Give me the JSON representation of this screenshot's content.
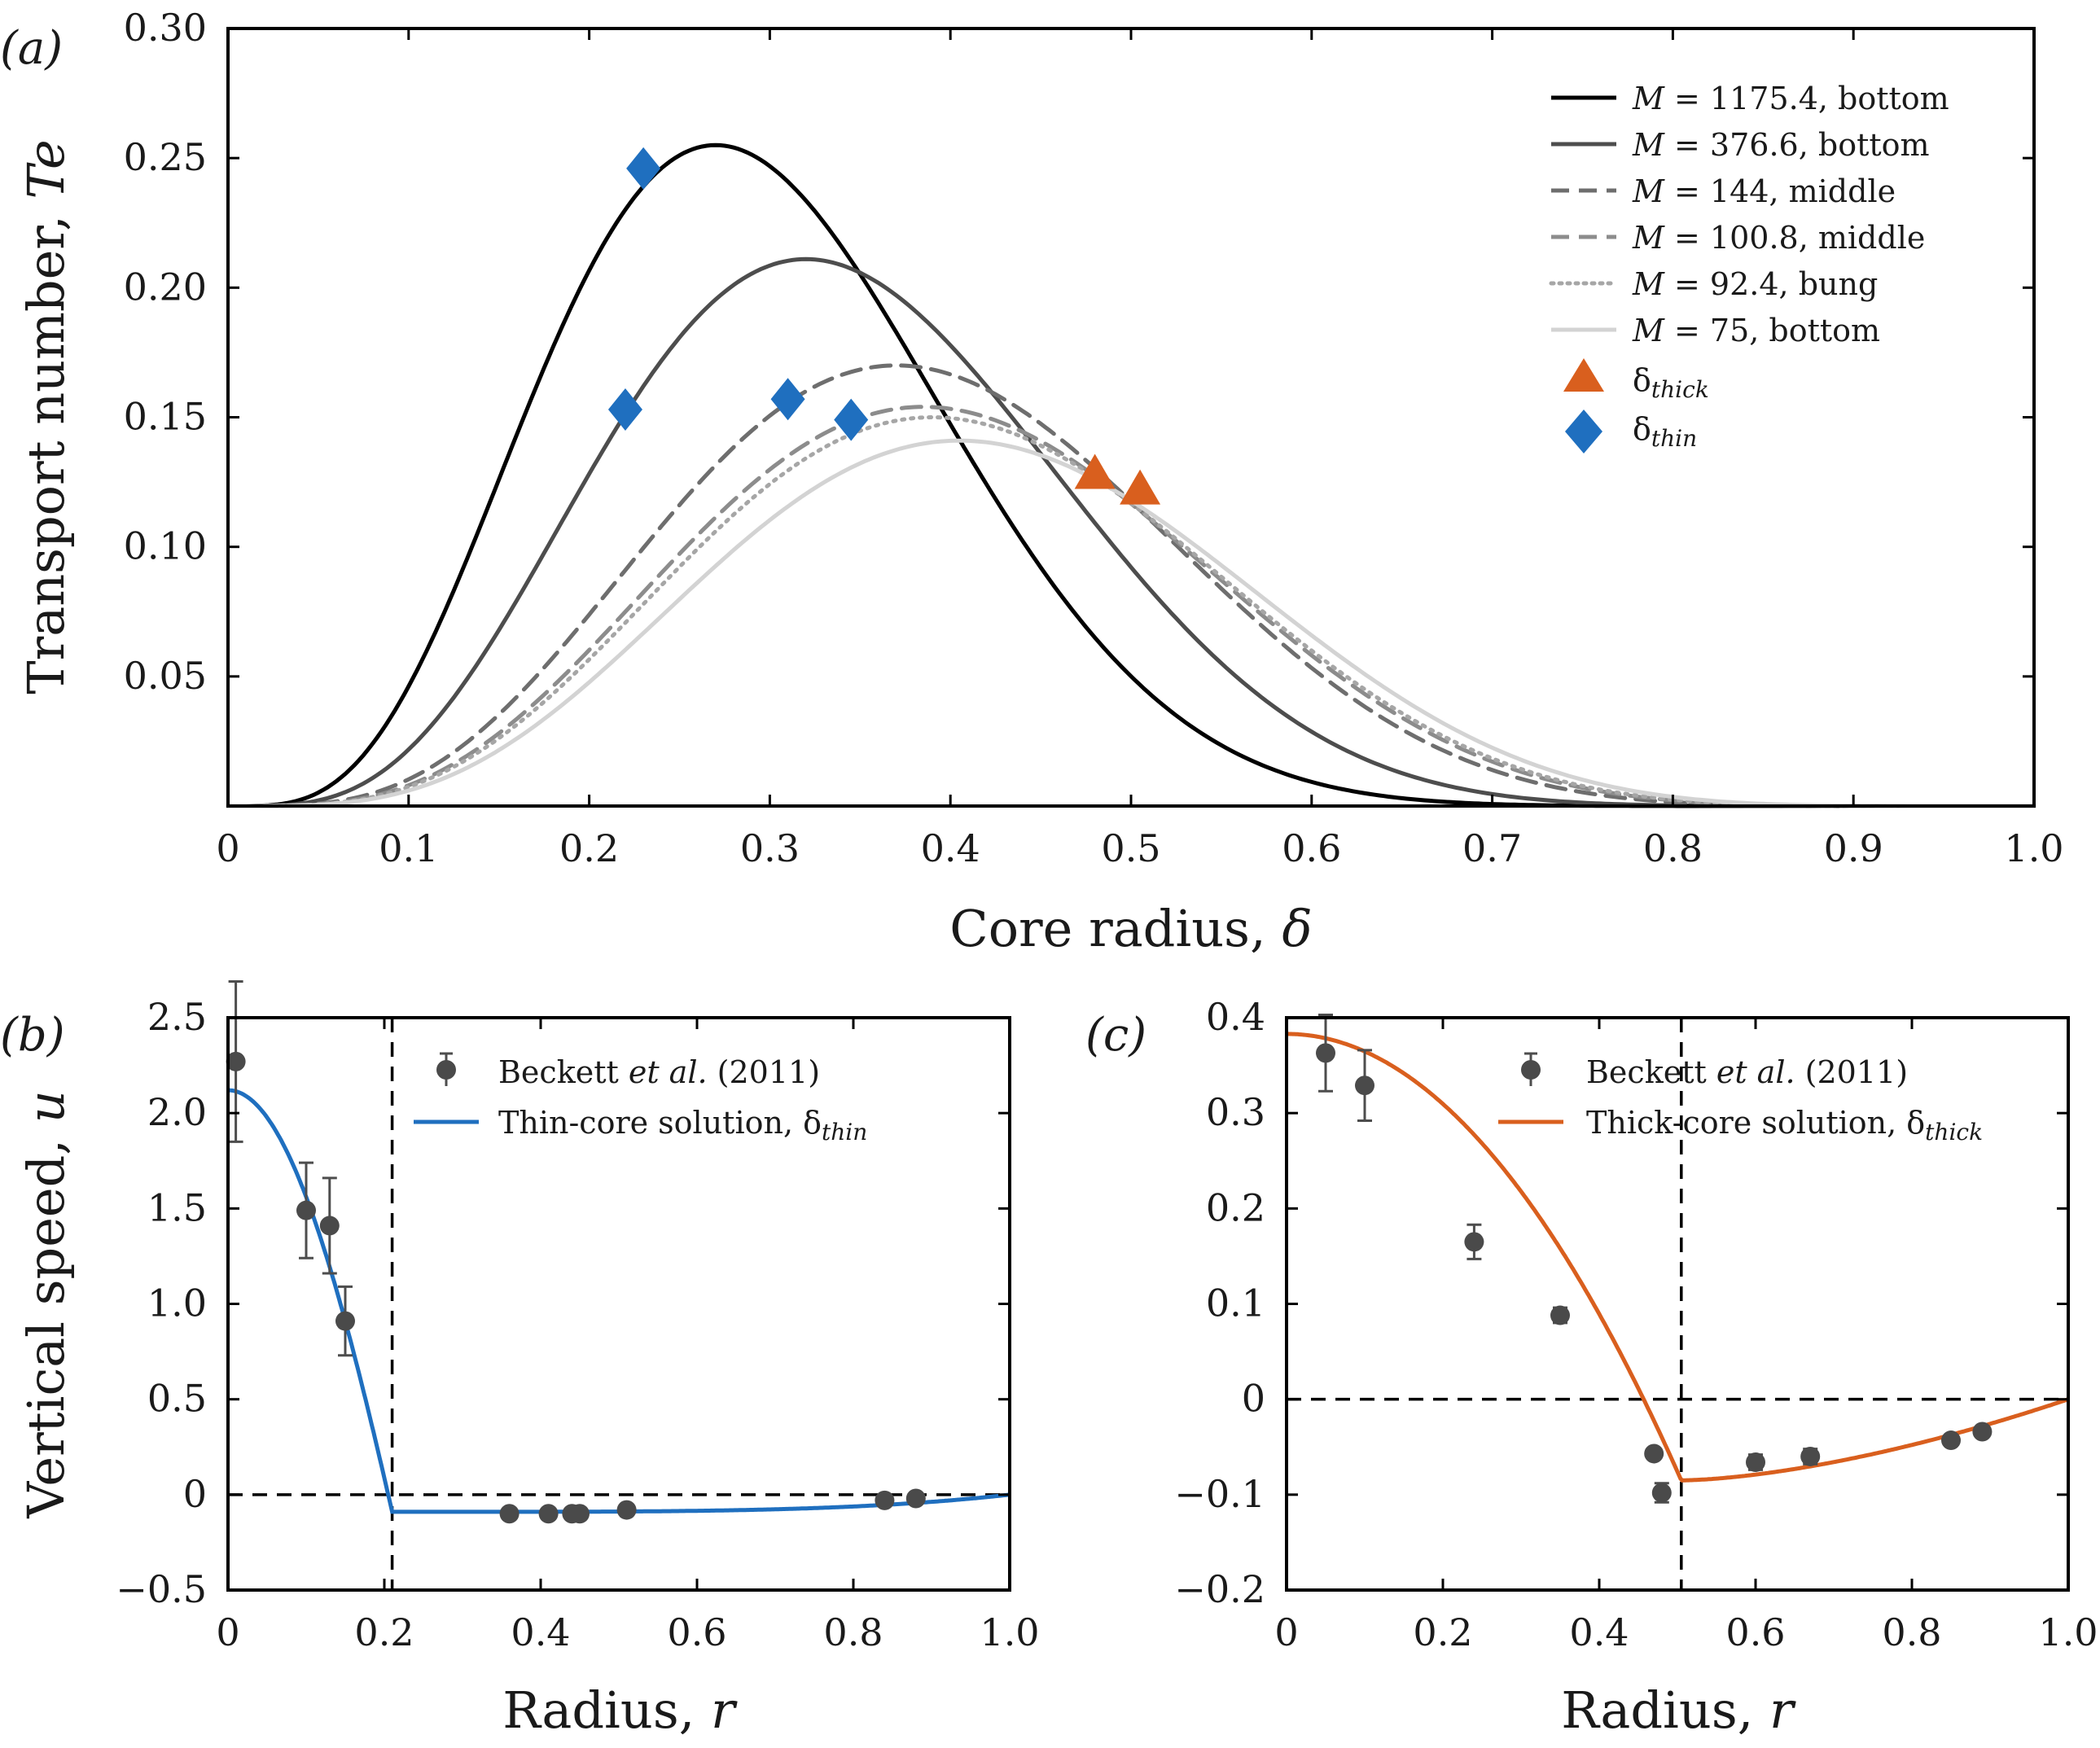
{
  "chart_data": [
    {
      "panel": "(a)",
      "type": "line",
      "xlabel": "Core radius, δ",
      "ylabel": "Transport number, Te",
      "xlim": [
        0,
        1.0
      ],
      "ylim": [
        0,
        0.3
      ],
      "xticks": [
        "0",
        "0.1",
        "0.2",
        "0.3",
        "0.4",
        "0.5",
        "0.6",
        "0.7",
        "0.8",
        "0.9",
        "1.0"
      ],
      "yticks": [
        "0.05",
        "0.10",
        "0.15",
        "0.20",
        "0.25",
        "0.30"
      ],
      "legend_position": "top-right",
      "series": [
        {
          "name": "M = 1175.4, bottom",
          "M": "1175.4",
          "loc": "bottom",
          "color": "#000000",
          "dash": "solid",
          "peak_x": 0.27,
          "peak_y": 0.255
        },
        {
          "name": "M = 376.6, bottom",
          "M": "376.6",
          "loc": "bottom",
          "color": "#4d4d4d",
          "dash": "solid",
          "peak_x": 0.32,
          "peak_y": 0.211
        },
        {
          "name": "M = 144, middle",
          "M": "144",
          "loc": "middle",
          "color": "#6e6e6e",
          "dash": "dashed",
          "peak_x": 0.37,
          "peak_y": 0.17
        },
        {
          "name": "M = 100.8, middle",
          "M": "100.8",
          "loc": "middle",
          "color": "#8c8c8c",
          "dash": "dashed",
          "peak_x": 0.385,
          "peak_y": 0.154
        },
        {
          "name": "M = 92.4, bung",
          "M": "92.4",
          "loc": "bung",
          "color": "#a6a6a6",
          "dash": "dotted",
          "peak_x": 0.39,
          "peak_y": 0.15
        },
        {
          "name": "M = 75, bottom",
          "M": "75",
          "loc": "bottom",
          "color": "#d3d3d3",
          "dash": "solid",
          "peak_x": 0.405,
          "peak_y": 0.141
        }
      ],
      "markers": {
        "thick": {
          "label_base": "δ",
          "label_sub": "thick",
          "color": "#d95f1e",
          "points": [
            [
              0.48,
              0.128
            ],
            [
              0.505,
              0.122
            ]
          ]
        },
        "thin": {
          "label_base": "δ",
          "label_sub": "thin",
          "color": "#1f6fbf",
          "points": [
            [
              0.23,
              0.246
            ],
            [
              0.22,
              0.153
            ],
            [
              0.31,
              0.157
            ],
            [
              0.345,
              0.149
            ]
          ]
        }
      }
    },
    {
      "panel": "(b)",
      "type": "scatter",
      "xlabel": "Radius, r",
      "ylabel": "Vertical speed, u",
      "xlim": [
        0,
        1.0
      ],
      "ylim": [
        -0.5,
        2.5
      ],
      "xticks": [
        "0",
        "0.2",
        "0.4",
        "0.6",
        "0.8",
        "1.0"
      ],
      "yticks": [
        "−0.5",
        "0",
        "0.5",
        "1.0",
        "1.5",
        "2.0",
        "2.5"
      ],
      "vline_x": 0.21,
      "legend_position": "top-right",
      "legend": {
        "data_a": "Beckett ",
        "data_b": "et al.",
        "data_c": " (2011)",
        "line_a": "Thin-core solution,  δ",
        "line_sub": "thin"
      },
      "line_color": "#1f6fbf",
      "points": [
        {
          "x": 0.01,
          "y": 2.27,
          "err": 0.42
        },
        {
          "x": 0.1,
          "y": 1.49,
          "err": 0.25
        },
        {
          "x": 0.13,
          "y": 1.41,
          "err": 0.25
        },
        {
          "x": 0.15,
          "y": 0.91,
          "err": 0.18
        },
        {
          "x": 0.36,
          "y": -0.1,
          "err": 0
        },
        {
          "x": 0.41,
          "y": -0.1,
          "err": 0
        },
        {
          "x": 0.44,
          "y": -0.1,
          "err": 0
        },
        {
          "x": 0.45,
          "y": -0.1,
          "err": 0
        },
        {
          "x": 0.51,
          "y": -0.08,
          "err": 0
        },
        {
          "x": 0.84,
          "y": -0.03,
          "err": 0
        },
        {
          "x": 0.88,
          "y": -0.02,
          "err": 0
        }
      ],
      "solution": {
        "center": 2.12,
        "delta": 0.21,
        "outer_min": -0.09
      }
    },
    {
      "panel": "(c)",
      "type": "scatter",
      "xlabel": "Radius, r",
      "ylabel": "",
      "xlim": [
        0,
        1.0
      ],
      "ylim": [
        -0.2,
        0.4
      ],
      "xticks": [
        "0",
        "0.2",
        "0.4",
        "0.6",
        "0.8",
        "1.0"
      ],
      "yticks": [
        "−0.2",
        "−0.1",
        "0",
        "0.1",
        "0.2",
        "0.3",
        "0.4"
      ],
      "vline_x": 0.505,
      "legend_position": "top-right",
      "legend": {
        "data_a": "Beckett ",
        "data_b": "et al.",
        "data_c": " (2011)",
        "line_a": "Thick-core solution,  δ",
        "line_sub": "thick"
      },
      "line_color": "#d95f1e",
      "points": [
        {
          "x": 0.05,
          "y": 0.363,
          "err": 0.04
        },
        {
          "x": 0.1,
          "y": 0.329,
          "err": 0.037
        },
        {
          "x": 0.24,
          "y": 0.165,
          "err": 0.018
        },
        {
          "x": 0.35,
          "y": 0.088,
          "err": 0.008
        },
        {
          "x": 0.47,
          "y": -0.057,
          "err": 0
        },
        {
          "x": 0.48,
          "y": -0.098,
          "err": 0.01
        },
        {
          "x": 0.6,
          "y": -0.066,
          "err": 0.008
        },
        {
          "x": 0.67,
          "y": -0.06,
          "err": 0.008
        },
        {
          "x": 0.85,
          "y": -0.043,
          "err": 0
        },
        {
          "x": 0.89,
          "y": -0.034,
          "err": 0
        }
      ],
      "solution": {
        "center": 0.383,
        "delta": 0.505,
        "outer_min": -0.085
      }
    }
  ],
  "panel_labels": {
    "a": "(a)",
    "b": "(b)",
    "c": "(c)"
  },
  "axis_labels": {
    "a_x_pre": "Core radius, ",
    "a_x_var": "δ",
    "a_y_pre": "Transport number, ",
    "a_y_var": "Te",
    "b_x_pre": "Radius, ",
    "b_x_var": "r",
    "b_y_pre": "Vertical speed, ",
    "b_y_var": "u",
    "c_x_pre": "Radius, ",
    "c_x_var": "r"
  },
  "legend_a": [
    {
      "pre": "M",
      "post": " = 1175.4, bottom"
    },
    {
      "pre": "M",
      "post": " = 376.6, bottom"
    },
    {
      "pre": "M",
      "post": " = 144, middle"
    },
    {
      "pre": "M",
      "post": " = 100.8, middle"
    },
    {
      "pre": "M",
      "post": " = 92.4, bung"
    },
    {
      "pre": "M",
      "post": " = 75, bottom"
    }
  ]
}
